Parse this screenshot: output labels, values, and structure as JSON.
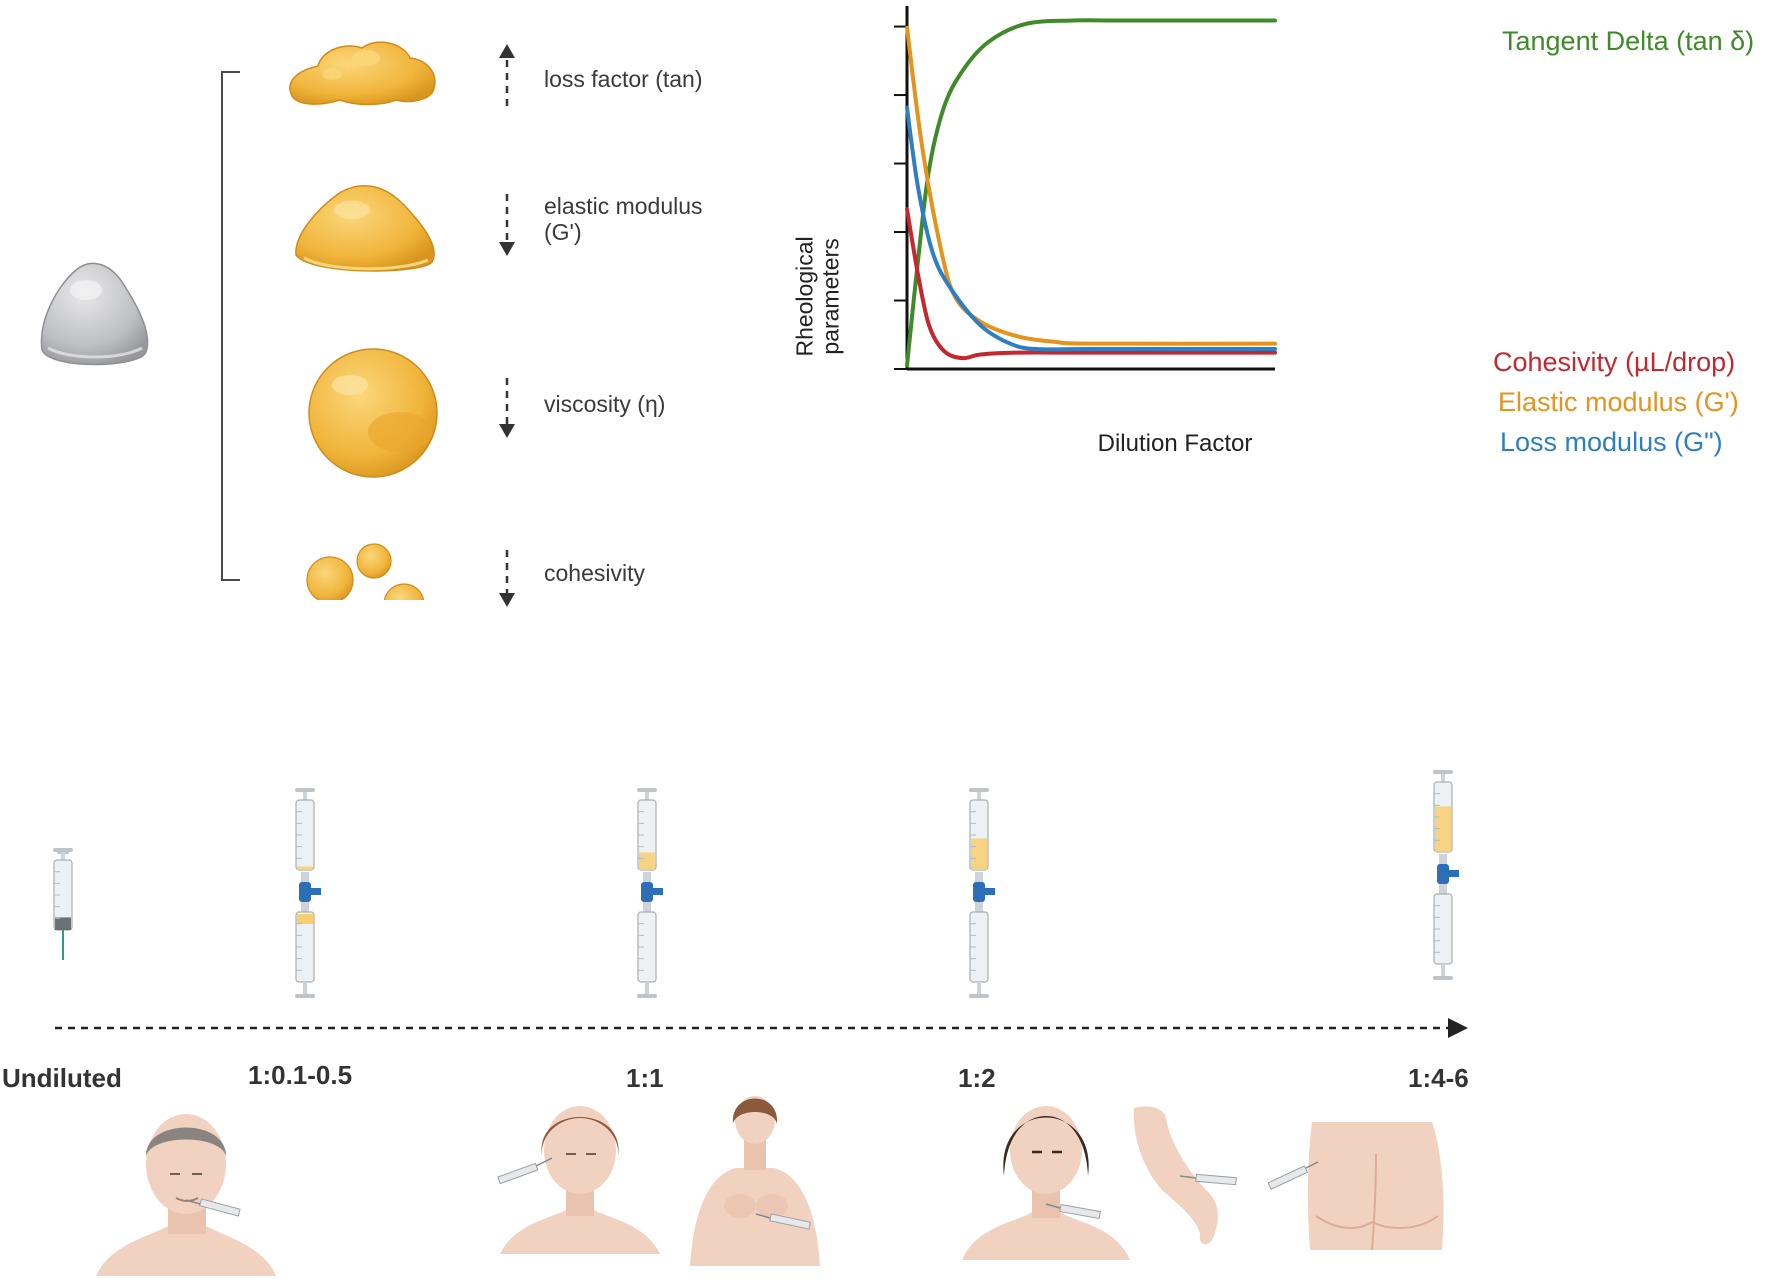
{
  "properties": [
    {
      "label": "loss factor (tan)",
      "direction": "up",
      "icon": "irregular-gel-icon"
    },
    {
      "label": "elastic modulus (G')",
      "direction": "down",
      "icon": "dome-gel-icon"
    },
    {
      "label": "viscosity (η)",
      "direction": "down",
      "icon": "sphere-gel-icon"
    },
    {
      "label": "cohesivity",
      "direction": "down",
      "icon": "droplets-icon"
    }
  ],
  "chart": {
    "ylabel_line1": "Rheological",
    "ylabel_line2": "parameters",
    "xlabel": "Dilution Factor",
    "series": [
      {
        "name": "Tangent Delta (tan δ)",
        "color": "#3f8a2a"
      },
      {
        "name": "Cohesivity (µL/drop)",
        "color": "#c4272e"
      },
      {
        "name": "Elastic modulus (G')",
        "color": "#e5931c"
      },
      {
        "name": "Loss modulus (G\")",
        "color": "#2f7ec1"
      }
    ]
  },
  "chart_data": {
    "type": "line",
    "series": [
      {
        "name": "Tangent Delta (tan δ)",
        "color": "#3f8a2a",
        "x": [
          0,
          0.03,
          0.06,
          0.1,
          0.15,
          0.22,
          0.32,
          0.45,
          0.6,
          1.0
        ],
        "y": [
          0.01,
          0.3,
          0.55,
          0.72,
          0.82,
          0.9,
          0.95,
          0.96,
          0.96,
          0.96
        ]
      },
      {
        "name": "Cohesivity (µL/drop)",
        "color": "#c4272e",
        "x": [
          0,
          0.03,
          0.06,
          0.1,
          0.15,
          0.2,
          0.3,
          0.5,
          1.0
        ],
        "y": [
          0.44,
          0.26,
          0.12,
          0.05,
          0.03,
          0.04,
          0.045,
          0.045,
          0.045
        ]
      },
      {
        "name": "Elastic modulus (G')",
        "color": "#e5931c",
        "x": [
          0,
          0.04,
          0.09,
          0.13,
          0.2,
          0.3,
          0.4,
          0.5,
          1.0
        ],
        "y": [
          0.94,
          0.62,
          0.34,
          0.2,
          0.13,
          0.09,
          0.075,
          0.07,
          0.07
        ]
      },
      {
        "name": "Loss modulus (G\")",
        "color": "#2f7ec1",
        "x": [
          0,
          0.03,
          0.07,
          0.12,
          0.2,
          0.28,
          0.35,
          0.5,
          1.0
        ],
        "y": [
          0.72,
          0.5,
          0.32,
          0.22,
          0.12,
          0.07,
          0.055,
          0.055,
          0.055
        ]
      }
    ],
    "xlabel": "Dilution Factor",
    "ylabel": "Rheological parameters",
    "xlim": [
      0,
      1
    ],
    "ylim": [
      0,
      1
    ],
    "grid": false,
    "legend": "right"
  },
  "timeline": {
    "points": [
      {
        "label": "Undiluted",
        "syringe": "single"
      },
      {
        "label": "1:0.1-0.5",
        "syringe": "double",
        "fill": 0.05
      },
      {
        "label": "1:1",
        "syringe": "double",
        "fill": 0.25
      },
      {
        "label": "1:2",
        "syringe": "double",
        "fill": 0.45
      },
      {
        "label": "1:4-6",
        "syringe": "double",
        "fill": 0.65
      }
    ]
  },
  "colors": {
    "gel": "#f0b43a",
    "gel_light": "#f7cf6e",
    "gel_dark": "#d9951e",
    "stopcock": "#2d6fb7",
    "skin": "#f1d2c1",
    "skin_shade": "#e2b8a2",
    "hair_grey": "#8a8480",
    "hair_brown": "#8b5a3c",
    "hair_black": "#3a2a22"
  }
}
